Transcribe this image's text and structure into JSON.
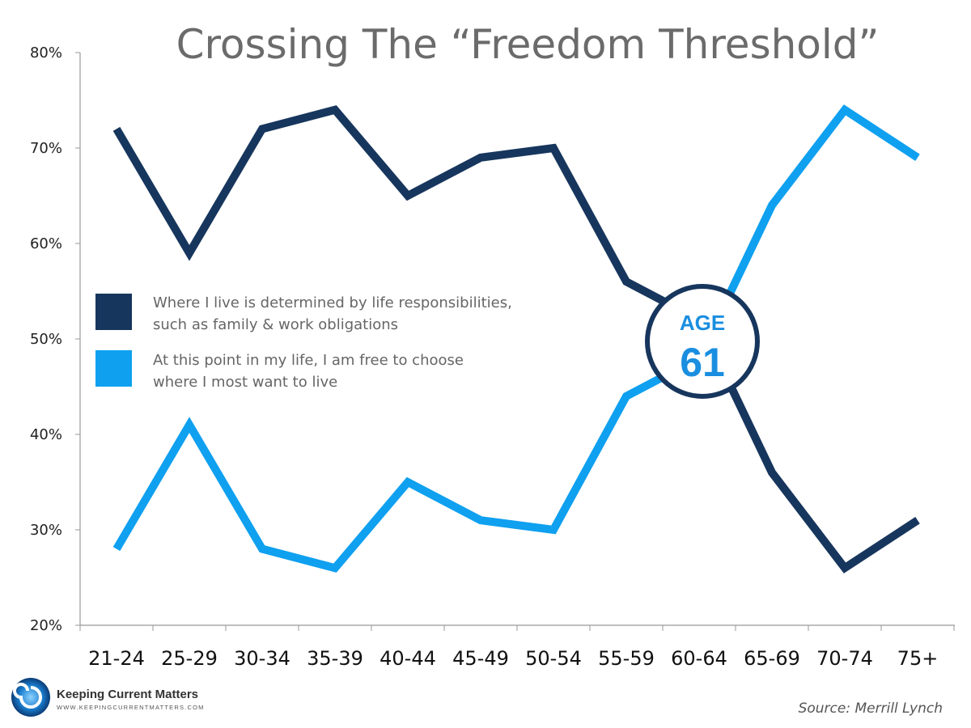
{
  "chart_data": {
    "type": "line",
    "title": "Crossing The “Freedom Threshold”",
    "xlabel": "",
    "ylabel": "",
    "categories": [
      "21-24",
      "25-29",
      "30-34",
      "35-39",
      "40-44",
      "45-49",
      "50-54",
      "55-59",
      "60-64",
      "65-69",
      "70-74",
      "75+"
    ],
    "yticks": [
      "20%",
      "30%",
      "40%",
      "50%",
      "60%",
      "70%",
      "80%"
    ],
    "ylim": [
      20,
      80
    ],
    "grid": false,
    "legend_placement": "center-left",
    "series": [
      {
        "name": "Where I live is determined by life responsibilities, such as family & work obligations",
        "legend_lines": [
          "Where I live is determined by life responsibilities,",
          "such as family & work obligations"
        ],
        "color": "#17365d",
        "values": [
          72,
          59,
          72,
          74,
          65,
          69,
          70,
          56,
          52,
          36,
          26,
          31
        ]
      },
      {
        "name": "At this point in my life, I am free to choose where I most want to live",
        "legend_lines": [
          "At this point in my life, I am free to choose",
          "where I most want to live"
        ],
        "color": "#0fa0f0",
        "values": [
          28,
          41,
          28,
          26,
          35,
          31,
          30,
          44,
          48,
          64,
          74,
          69
        ]
      }
    ],
    "annotation": {
      "label": "AGE",
      "value": "61"
    },
    "source": "Source: Merrill Lynch"
  },
  "logo": {
    "name": "Keeping Current Matters",
    "url_text": "WWW.KEEPINGCURRENTMATTERS.COM"
  }
}
